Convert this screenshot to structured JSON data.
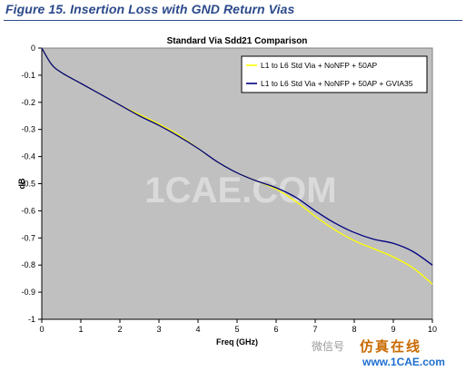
{
  "caption": "Figure 15. Insertion Loss with GND Return Vias",
  "watermark": "1CAE.COM",
  "footer": {
    "wechat_text": "微信号",
    "brand_text": "仿真在线",
    "url": "www.1CAE.com"
  },
  "colors": {
    "plot_bg": "#c0c0c0",
    "series1": "#ffff00",
    "series2": "#000080",
    "caption": "#2b4a8a"
  },
  "chart_data": {
    "type": "line",
    "title": "Standard Via Sdd21 Comparison",
    "xlabel": "Freq (GHz)",
    "ylabel": "dB",
    "xlim": [
      0,
      10
    ],
    "ylim": [
      -1,
      0
    ],
    "xticks": [
      0,
      1,
      2,
      3,
      4,
      5,
      6,
      7,
      8,
      9,
      10
    ],
    "yticks": [
      0,
      -0.1,
      -0.2,
      -0.3,
      -0.4,
      -0.5,
      -0.6,
      -0.7,
      -0.8,
      -0.9,
      -1
    ],
    "grid": false,
    "legend_position": "top-right",
    "x": [
      0,
      0.25,
      0.5,
      1,
      1.5,
      2,
      2.5,
      3,
      3.5,
      4,
      4.5,
      5,
      5.5,
      6,
      6.5,
      7,
      7.5,
      8,
      8.5,
      9,
      9.5,
      10
    ],
    "series": [
      {
        "name": "L1 to L6 Std Via + NoNFP + 50AP",
        "color": "#ffff00",
        "values": [
          0,
          -0.06,
          -0.09,
          -0.13,
          -0.17,
          -0.21,
          -0.245,
          -0.28,
          -0.32,
          -0.37,
          -0.42,
          -0.46,
          -0.49,
          -0.52,
          -0.565,
          -0.62,
          -0.67,
          -0.71,
          -0.74,
          -0.77,
          -0.81,
          -0.87
        ]
      },
      {
        "name": "L1 to L6 Std Via + NoNFP + 50AP + GVIA35",
        "color": "#000080",
        "values": [
          0,
          -0.06,
          -0.09,
          -0.13,
          -0.17,
          -0.21,
          -0.25,
          -0.285,
          -0.325,
          -0.37,
          -0.42,
          -0.46,
          -0.49,
          -0.515,
          -0.55,
          -0.6,
          -0.645,
          -0.68,
          -0.705,
          -0.72,
          -0.75,
          -0.8
        ]
      }
    ]
  }
}
